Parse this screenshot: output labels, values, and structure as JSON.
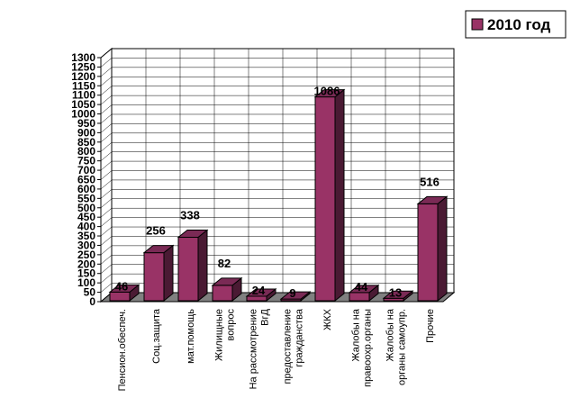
{
  "chart_data": {
    "type": "bar",
    "categories": [
      "Пенсион.обеспеч.",
      "Соц.защита",
      "мат.помощь",
      "Жилищные вопрос",
      "На рассмотрение ВгД",
      "предоставление гражданства",
      "ЖКХ",
      "Жалобы на правоохр.органы",
      "Жалобы на органы самоупр.",
      "Прочие"
    ],
    "category_lines": [
      [
        "Пенсион.обеспеч."
      ],
      [
        "Соц.защита"
      ],
      [
        "мат.помощь"
      ],
      [
        "Жилищные",
        "вопрос"
      ],
      [
        "На рассмотрение",
        "ВгД"
      ],
      [
        "предоставление",
        "гражданства"
      ],
      [
        "ЖКХ"
      ],
      [
        "Жалобы на",
        "правоохр.органы"
      ],
      [
        "Жалобы на",
        "органы самоупр."
      ],
      [
        "Прочие"
      ]
    ],
    "series": [
      {
        "name": "2010 год",
        "values": [
          46,
          256,
          338,
          82,
          24,
          9,
          1086,
          44,
          13,
          516
        ]
      }
    ],
    "data_labels": [
      "46",
      "256",
      "338",
      "82",
      "24",
      "9",
      "1086",
      "44",
      "13",
      "516"
    ],
    "yticks": [
      "0",
      "50",
      "100",
      "150",
      "200",
      "250",
      "300",
      "350",
      "400",
      "450",
      "500",
      "550",
      "600",
      "650",
      "700",
      "750",
      "800",
      "850",
      "900",
      "950",
      "1000",
      "1050",
      "1100",
      "1150",
      "1200",
      "1250",
      "1300"
    ],
    "ylim": [
      0,
      1300
    ],
    "legend": "top-right",
    "grid": true,
    "colors": {
      "bar_front": "#993366",
      "bar_side": "#4a1a33",
      "bar_top": "#7a2a55",
      "floor": "#808080",
      "wall": "#ffffff",
      "grid": "#000000"
    }
  }
}
